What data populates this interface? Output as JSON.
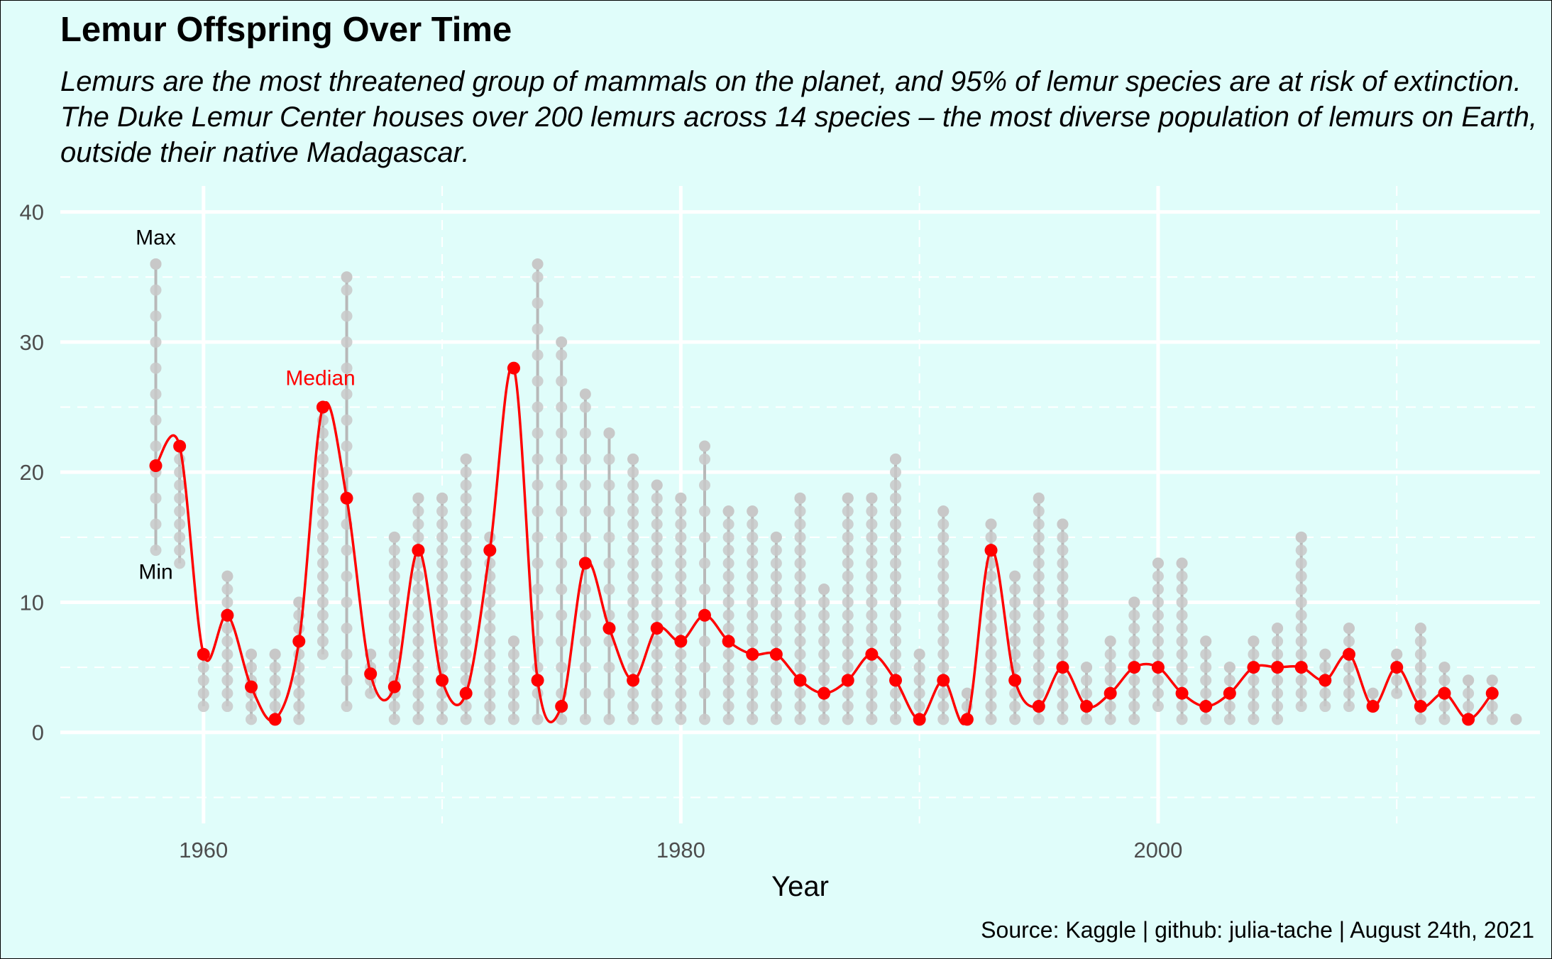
{
  "title": "Lemur Offspring Over Time",
  "subtitle": "Lemurs are the most threatened group of mammals on the planet, and 95% of lemur species are at risk of extinction. The Duke Lemur Center houses over 200 lemurs across 14 species – the most diverse population of lemurs on Earth, outside their native Madagascar.",
  "caption": "Source: Kaggle | github: julia-tache | August 24th, 2021",
  "colors": {
    "background": "#e0fdfa",
    "grid": "#ffffff",
    "range": "#b8b8b8",
    "points": "#c8c8c8",
    "median": "#ff0000"
  },
  "chart_data": {
    "type": "line",
    "xlabel": "Year",
    "ylabel": "",
    "xlim": [
      1954,
      2016
    ],
    "ylim": [
      -7,
      42
    ],
    "x_ticks": [
      1960,
      1980,
      2000
    ],
    "y_ticks": [
      0,
      10,
      20,
      30,
      40
    ],
    "grid": true,
    "annotations": [
      {
        "text": "Max",
        "x": 1958,
        "y": 37.5,
        "color": "#000000"
      },
      {
        "text": "Min",
        "x": 1958,
        "y": 11.8,
        "color": "#000000"
      },
      {
        "text": "Median",
        "x": 1964.9,
        "y": 26.7,
        "color": "#ff0000"
      }
    ],
    "series": [
      {
        "name": "Median",
        "years": [
          1958,
          1959,
          1960,
          1961,
          1962,
          1963,
          1964,
          1965,
          1966,
          1967,
          1968,
          1969,
          1970,
          1971,
          1972,
          1973,
          1974,
          1975,
          1976,
          1977,
          1978,
          1979,
          1980,
          1981,
          1982,
          1983,
          1984,
          1985,
          1986,
          1987,
          1988,
          1989,
          1990,
          1991,
          1992,
          1993,
          1994,
          1995,
          1996,
          1997,
          1998,
          1999,
          2000,
          2001,
          2002,
          2003,
          2004,
          2005,
          2006,
          2007,
          2008,
          2009,
          2010,
          2011,
          2012,
          2013,
          2014
        ],
        "values": [
          20.5,
          22,
          6,
          9,
          3.5,
          1,
          7,
          25,
          18,
          4.5,
          3.5,
          14,
          4,
          3,
          14,
          28,
          4,
          2,
          13,
          8,
          4,
          8,
          7,
          9,
          7,
          6,
          6,
          4,
          3,
          4,
          6,
          4,
          1,
          4,
          1,
          14,
          4,
          2,
          5,
          2,
          3,
          5,
          5,
          3,
          2,
          3,
          5,
          5,
          5,
          4,
          6,
          2,
          5,
          2,
          3,
          1,
          3
        ]
      },
      {
        "name": "Range",
        "years": [
          1958,
          1959,
          1960,
          1961,
          1962,
          1963,
          1964,
          1965,
          1966,
          1967,
          1968,
          1969,
          1970,
          1971,
          1972,
          1973,
          1974,
          1975,
          1976,
          1977,
          1978,
          1979,
          1980,
          1981,
          1982,
          1983,
          1984,
          1985,
          1986,
          1987,
          1988,
          1989,
          1990,
          1991,
          1992,
          1993,
          1994,
          1995,
          1996,
          1997,
          1998,
          1999,
          2000,
          2001,
          2002,
          2003,
          2004,
          2005,
          2006,
          2007,
          2008,
          2009,
          2010,
          2011,
          2012,
          2013,
          2014,
          2015
        ],
        "min": [
          14,
          13,
          2,
          2,
          1,
          1,
          1,
          6,
          2,
          3,
          1,
          1,
          1,
          1,
          1,
          1,
          1,
          1,
          1,
          1,
          1,
          1,
          1,
          1,
          1,
          1,
          1,
          1,
          1,
          1,
          1,
          1,
          1,
          1,
          1,
          1,
          1,
          1,
          1,
          1,
          1,
          1,
          2,
          1,
          1,
          1,
          1,
          1,
          2,
          2,
          2,
          2,
          3,
          1,
          1,
          1,
          1,
          1
        ],
        "max": [
          36,
          22,
          6,
          12,
          6,
          6,
          10,
          25,
          35,
          6,
          15,
          18,
          18,
          21,
          15,
          7,
          36,
          30,
          26,
          23,
          21,
          19,
          18,
          22,
          17,
          17,
          15,
          18,
          11,
          18,
          18,
          21,
          6,
          17,
          3,
          16,
          12,
          18,
          16,
          5,
          7,
          10,
          13,
          13,
          7,
          5,
          7,
          8,
          15,
          6,
          8,
          3,
          6,
          8,
          5,
          4,
          4,
          1
        ]
      }
    ]
  }
}
